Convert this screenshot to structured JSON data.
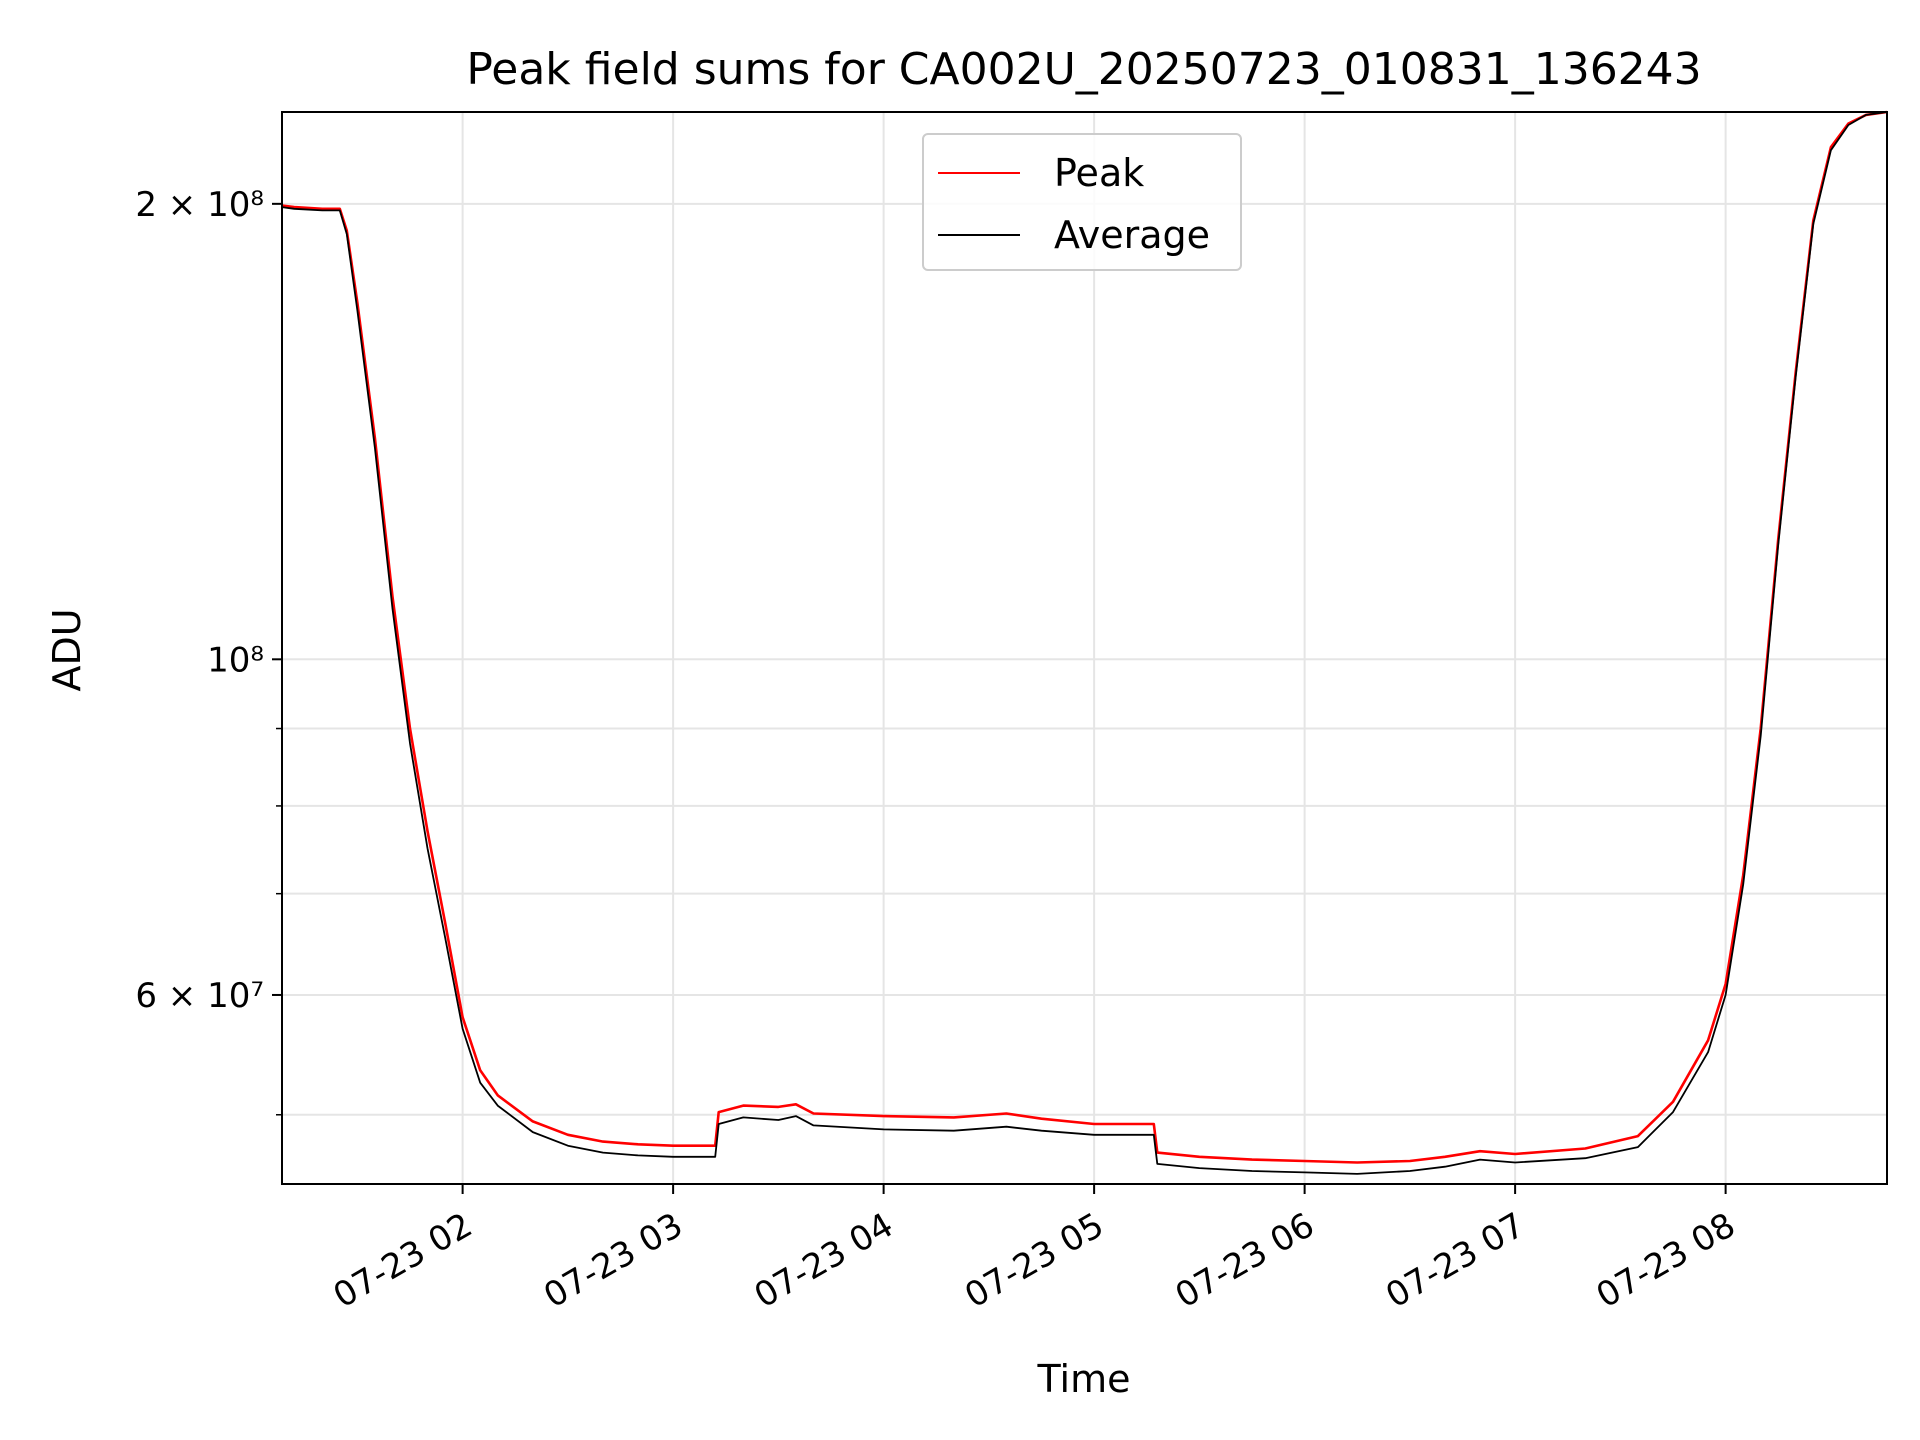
{
  "chart_data": {
    "type": "line",
    "title": "Peak field sums for CA002U_20250723_010831_136243",
    "xlabel": "Time",
    "ylabel": "ADU",
    "yscale": "log",
    "grid": true,
    "legend_position": "upper center",
    "x_ticks": [
      "07-23 02",
      "07-23 03",
      "07-23 04",
      "07-23 05",
      "07-23 06",
      "07-23 07",
      "07-23 08"
    ],
    "y_ticks": [
      {
        "value": 200000000,
        "label": "2 × 10⁸"
      },
      {
        "value": 100000000,
        "label": "10⁸"
      },
      {
        "value": 60000000,
        "label": "6 × 10⁷"
      }
    ],
    "xlim": [
      "2025-07-23 01:08:31",
      "2025-07-23 08:46:00"
    ],
    "ylim": [
      45000000,
      230000000
    ],
    "series": [
      {
        "name": "Peak",
        "color": "#ff0000",
        "points": [
          [
            "2025-07-23 01:08:31",
            199500000
          ],
          [
            "2025-07-23 01:12:00",
            199000000
          ],
          [
            "2025-07-23 01:20:00",
            198500000
          ],
          [
            "2025-07-23 01:25:00",
            198500000
          ],
          [
            "2025-07-23 01:27:00",
            192000000
          ],
          [
            "2025-07-23 01:30:00",
            172000000
          ],
          [
            "2025-07-23 01:35:00",
            140000000
          ],
          [
            "2025-07-23 01:40:00",
            110000000
          ],
          [
            "2025-07-23 01:45:00",
            90000000
          ],
          [
            "2025-07-23 01:50:00",
            77000000
          ],
          [
            "2025-07-23 01:55:00",
            67000000
          ],
          [
            "2025-07-23 02:00:00",
            58000000
          ],
          [
            "2025-07-23 02:05:00",
            53500000
          ],
          [
            "2025-07-23 02:10:00",
            51500000
          ],
          [
            "2025-07-23 02:20:00",
            49500000
          ],
          [
            "2025-07-23 02:30:00",
            48500000
          ],
          [
            "2025-07-23 02:40:00",
            48000000
          ],
          [
            "2025-07-23 02:50:00",
            47800000
          ],
          [
            "2025-07-23 03:00:00",
            47700000
          ],
          [
            "2025-07-23 03:12:00",
            47700000
          ],
          [
            "2025-07-23 03:13:00",
            50200000
          ],
          [
            "2025-07-23 03:20:00",
            50700000
          ],
          [
            "2025-07-23 03:30:00",
            50600000
          ],
          [
            "2025-07-23 03:35:00",
            50800000
          ],
          [
            "2025-07-23 03:40:00",
            50100000
          ],
          [
            "2025-07-23 04:00:00",
            49900000
          ],
          [
            "2025-07-23 04:20:00",
            49800000
          ],
          [
            "2025-07-23 04:35:00",
            50100000
          ],
          [
            "2025-07-23 04:45:00",
            49700000
          ],
          [
            "2025-07-23 05:00:00",
            49300000
          ],
          [
            "2025-07-23 05:17:00",
            49300000
          ],
          [
            "2025-07-23 05:18:00",
            47200000
          ],
          [
            "2025-07-23 05:30:00",
            46900000
          ],
          [
            "2025-07-23 05:45:00",
            46700000
          ],
          [
            "2025-07-23 06:00:00",
            46600000
          ],
          [
            "2025-07-23 06:15:00",
            46500000
          ],
          [
            "2025-07-23 06:30:00",
            46600000
          ],
          [
            "2025-07-23 06:40:00",
            46900000
          ],
          [
            "2025-07-23 06:50:00",
            47300000
          ],
          [
            "2025-07-23 07:00:00",
            47100000
          ],
          [
            "2025-07-23 07:20:00",
            47500000
          ],
          [
            "2025-07-23 07:35:00",
            48400000
          ],
          [
            "2025-07-23 07:45:00",
            51000000
          ],
          [
            "2025-07-23 07:55:00",
            56000000
          ],
          [
            "2025-07-23 08:00:00",
            61000000
          ],
          [
            "2025-07-23 08:05:00",
            72000000
          ],
          [
            "2025-07-23 08:10:00",
            90000000
          ],
          [
            "2025-07-23 08:15:00",
            120000000
          ],
          [
            "2025-07-23 08:20:00",
            155000000
          ],
          [
            "2025-07-23 08:25:00",
            195000000
          ],
          [
            "2025-07-23 08:30:00",
            218000000
          ],
          [
            "2025-07-23 08:35:00",
            226000000
          ],
          [
            "2025-07-23 08:40:00",
            229000000
          ],
          [
            "2025-07-23 08:46:00",
            230000000
          ]
        ]
      },
      {
        "name": "Average",
        "color": "#000000",
        "points": [
          [
            "2025-07-23 01:08:31",
            199000000
          ],
          [
            "2025-07-23 01:12:00",
            198500000
          ],
          [
            "2025-07-23 01:20:00",
            198000000
          ],
          [
            "2025-07-23 01:25:00",
            198000000
          ],
          [
            "2025-07-23 01:27:00",
            191000000
          ],
          [
            "2025-07-23 01:30:00",
            170000000
          ],
          [
            "2025-07-23 01:35:00",
            138000000
          ],
          [
            "2025-07-23 01:40:00",
            108000000
          ],
          [
            "2025-07-23 01:45:00",
            88000000
          ],
          [
            "2025-07-23 01:50:00",
            75000000
          ],
          [
            "2025-07-23 01:55:00",
            65500000
          ],
          [
            "2025-07-23 02:00:00",
            57000000
          ],
          [
            "2025-07-23 02:05:00",
            52500000
          ],
          [
            "2025-07-23 02:10:00",
            50700000
          ],
          [
            "2025-07-23 02:20:00",
            48700000
          ],
          [
            "2025-07-23 02:30:00",
            47700000
          ],
          [
            "2025-07-23 02:40:00",
            47200000
          ],
          [
            "2025-07-23 02:50:00",
            47000000
          ],
          [
            "2025-07-23 03:00:00",
            46900000
          ],
          [
            "2025-07-23 03:12:00",
            46900000
          ],
          [
            "2025-07-23 03:13:00",
            49300000
          ],
          [
            "2025-07-23 03:20:00",
            49800000
          ],
          [
            "2025-07-23 03:30:00",
            49600000
          ],
          [
            "2025-07-23 03:35:00",
            49900000
          ],
          [
            "2025-07-23 03:40:00",
            49200000
          ],
          [
            "2025-07-23 04:00:00",
            48900000
          ],
          [
            "2025-07-23 04:20:00",
            48800000
          ],
          [
            "2025-07-23 04:35:00",
            49100000
          ],
          [
            "2025-07-23 04:45:00",
            48800000
          ],
          [
            "2025-07-23 05:00:00",
            48500000
          ],
          [
            "2025-07-23 05:17:00",
            48500000
          ],
          [
            "2025-07-23 05:18:00",
            46400000
          ],
          [
            "2025-07-23 05:30:00",
            46100000
          ],
          [
            "2025-07-23 05:45:00",
            45900000
          ],
          [
            "2025-07-23 06:00:00",
            45800000
          ],
          [
            "2025-07-23 06:15:00",
            45700000
          ],
          [
            "2025-07-23 06:30:00",
            45900000
          ],
          [
            "2025-07-23 06:40:00",
            46200000
          ],
          [
            "2025-07-23 06:50:00",
            46700000
          ],
          [
            "2025-07-23 07:00:00",
            46500000
          ],
          [
            "2025-07-23 07:20:00",
            46800000
          ],
          [
            "2025-07-23 07:35:00",
            47600000
          ],
          [
            "2025-07-23 07:45:00",
            50200000
          ],
          [
            "2025-07-23 07:55:00",
            55000000
          ],
          [
            "2025-07-23 08:00:00",
            60000000
          ],
          [
            "2025-07-23 08:05:00",
            71000000
          ],
          [
            "2025-07-23 08:10:00",
            89000000
          ],
          [
            "2025-07-23 08:15:00",
            119000000
          ],
          [
            "2025-07-23 08:20:00",
            154000000
          ],
          [
            "2025-07-23 08:25:00",
            194000000
          ],
          [
            "2025-07-23 08:30:00",
            217000000
          ],
          [
            "2025-07-23 08:35:00",
            225500000
          ],
          [
            "2025-07-23 08:40:00",
            229000000
          ],
          [
            "2025-07-23 08:46:00",
            230000000
          ]
        ]
      }
    ]
  }
}
